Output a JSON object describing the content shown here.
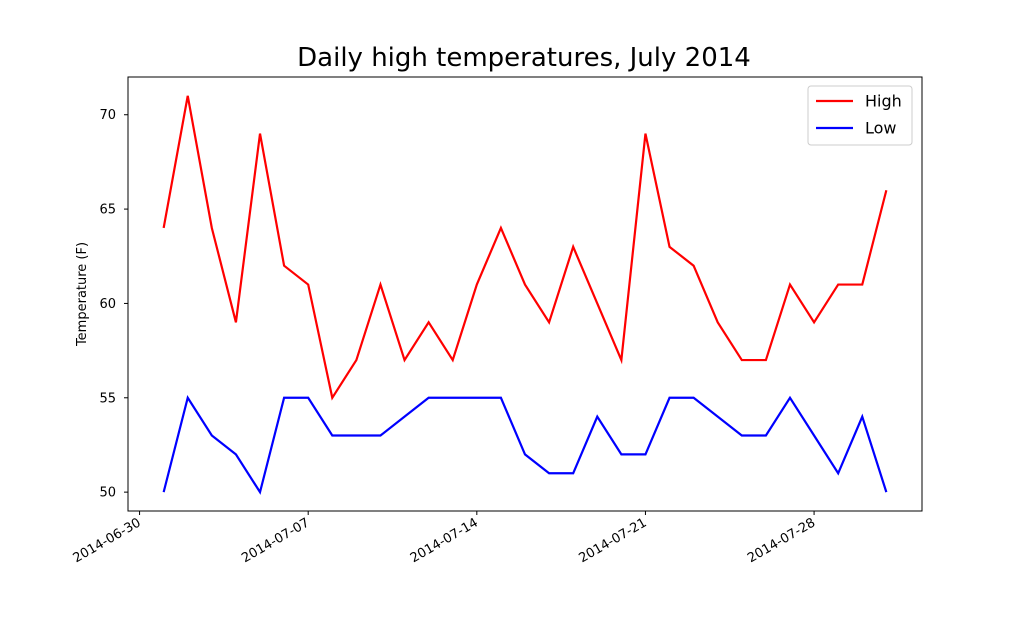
{
  "chart_data": {
    "type": "line",
    "title": "Daily high temperatures, July 2014",
    "xlabel": "",
    "ylabel": "Temperature (F)",
    "x": [
      "2014-07-01",
      "2014-07-02",
      "2014-07-03",
      "2014-07-04",
      "2014-07-05",
      "2014-07-06",
      "2014-07-07",
      "2014-07-08",
      "2014-07-09",
      "2014-07-10",
      "2014-07-11",
      "2014-07-12",
      "2014-07-13",
      "2014-07-14",
      "2014-07-15",
      "2014-07-16",
      "2014-07-17",
      "2014-07-18",
      "2014-07-19",
      "2014-07-20",
      "2014-07-21",
      "2014-07-22",
      "2014-07-23",
      "2014-07-24",
      "2014-07-25",
      "2014-07-26",
      "2014-07-27",
      "2014-07-28",
      "2014-07-29",
      "2014-07-30",
      "2014-07-31"
    ],
    "series": [
      {
        "name": "High",
        "color": "#ff0000",
        "values": [
          64,
          71,
          64,
          59,
          69,
          62,
          61,
          55,
          57,
          61,
          57,
          59,
          57,
          61,
          64,
          61,
          59,
          63,
          60,
          57,
          69,
          63,
          62,
          59,
          57,
          57,
          61,
          59,
          61,
          61,
          66
        ]
      },
      {
        "name": "Low",
        "color": "#0000ff",
        "values": [
          50,
          55,
          53,
          52,
          50,
          55,
          55,
          53,
          53,
          53,
          54,
          55,
          55,
          55,
          55,
          52,
          51,
          51,
          54,
          52,
          52,
          55,
          55,
          54,
          53,
          53,
          55,
          53,
          51,
          54,
          50
        ]
      }
    ],
    "xlim": [
      "2014-06-29.52",
      "2014-08-01.48"
    ],
    "ylim": [
      49.0,
      72.0
    ],
    "xticks": [
      "2014-06-30",
      "2014-07-07",
      "2014-07-14",
      "2014-07-21",
      "2014-07-28"
    ],
    "yticks": [
      50,
      55,
      60,
      65,
      70
    ],
    "legend": {
      "position": "top-right",
      "entries": [
        "High",
        "Low"
      ]
    },
    "grid": false
  }
}
